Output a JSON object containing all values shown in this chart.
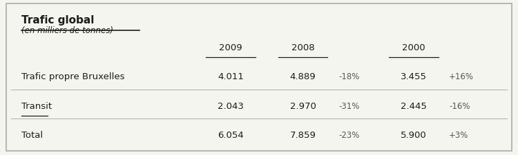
{
  "title": "Trafic global",
  "subtitle": "(en milliers de tonnes)",
  "col_headers": [
    "2009",
    "2008",
    "2000"
  ],
  "rows": [
    {
      "label": "Trafic propre Bruxelles",
      "underline_label": false,
      "val2009": "4.011",
      "val2008": "4.889",
      "pct2008": "-18%",
      "val2000": "3.455",
      "pct2000": "+16%"
    },
    {
      "label": "Transit",
      "underline_label": true,
      "val2009": "2.043",
      "val2008": "2.970",
      "pct2008": "-31%",
      "val2000": "2.445",
      "pct2000": "-16%"
    },
    {
      "label": "Total",
      "underline_label": false,
      "val2009": "6.054",
      "val2008": "7.859",
      "pct2008": "-23%",
      "val2000": "5.900",
      "pct2000": "+3%"
    }
  ],
  "bg_color": "#f5f5f0",
  "border_color": "#aaaaaa",
  "text_color": "#1a1a1a",
  "pct_color": "#555555",
  "font_size_title": 11,
  "font_size_subtitle": 8.5,
  "font_size_header": 9.5,
  "font_size_data": 9.5
}
